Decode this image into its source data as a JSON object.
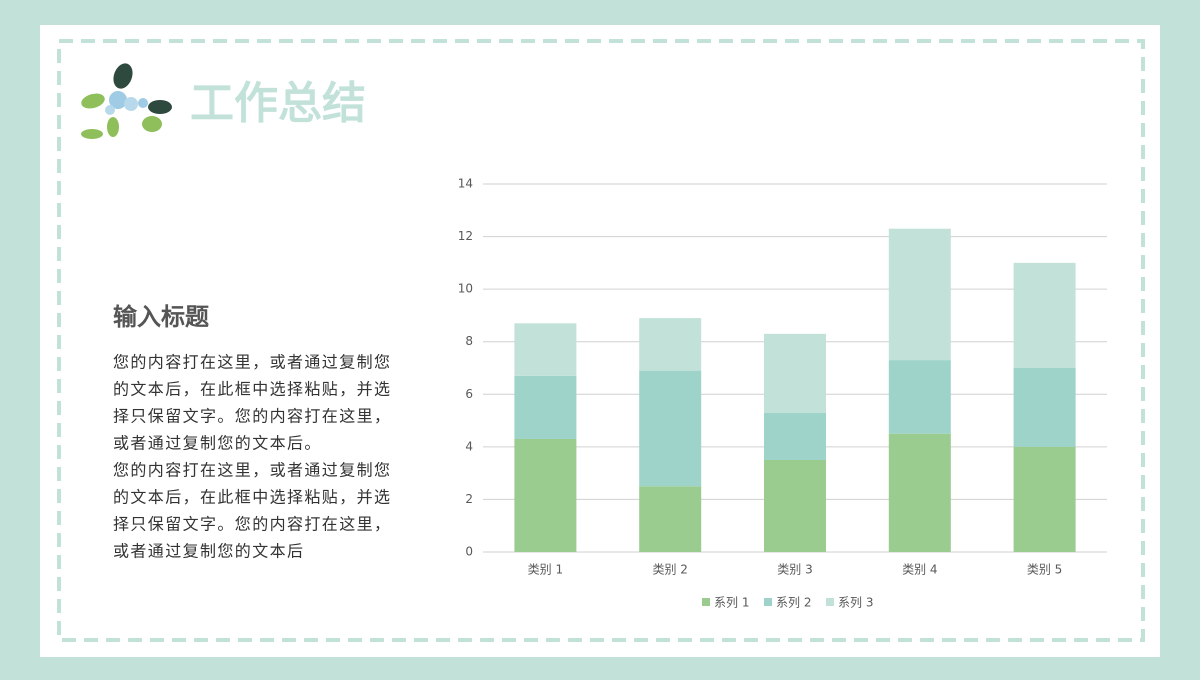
{
  "slide": {
    "title": "工作总结",
    "heading": "输入标题",
    "paragraphs": [
      [
        "您的内容打在这里，或者通过复制您",
        "的文本后，在此框中选择粘贴，并选",
        "择只保留文字。您的内容打在这里，",
        "或者通过复制您的文本后。"
      ],
      [
        "您的内容打在这里，或者通过复制您",
        "的文本后，在此框中选择粘贴，并选",
        "择只保留文字。您的内容打在这里，",
        "或者通过复制您的文本后"
      ]
    ]
  },
  "chart_data": {
    "type": "stacked-bar",
    "categories": [
      "类别 1",
      "类别 2",
      "类别 3",
      "类别 4",
      "类别 5"
    ],
    "series": [
      {
        "name": "系列 1",
        "color": "#9acb8f",
        "values": [
          4.3,
          2.5,
          3.5,
          4.5,
          4.0
        ]
      },
      {
        "name": "系列 2",
        "color": "#9dd3c8",
        "values": [
          2.4,
          4.4,
          1.8,
          2.8,
          3.0
        ]
      },
      {
        "name": "系列 3",
        "color": "#c2e2d9",
        "values": [
          2.0,
          2.0,
          3.0,
          5.0,
          4.0
        ]
      }
    ],
    "ylim": [
      0,
      14
    ],
    "yticks": [
      0,
      2,
      4,
      6,
      8,
      10,
      12,
      14
    ],
    "grid": true,
    "legend": "bottom"
  }
}
